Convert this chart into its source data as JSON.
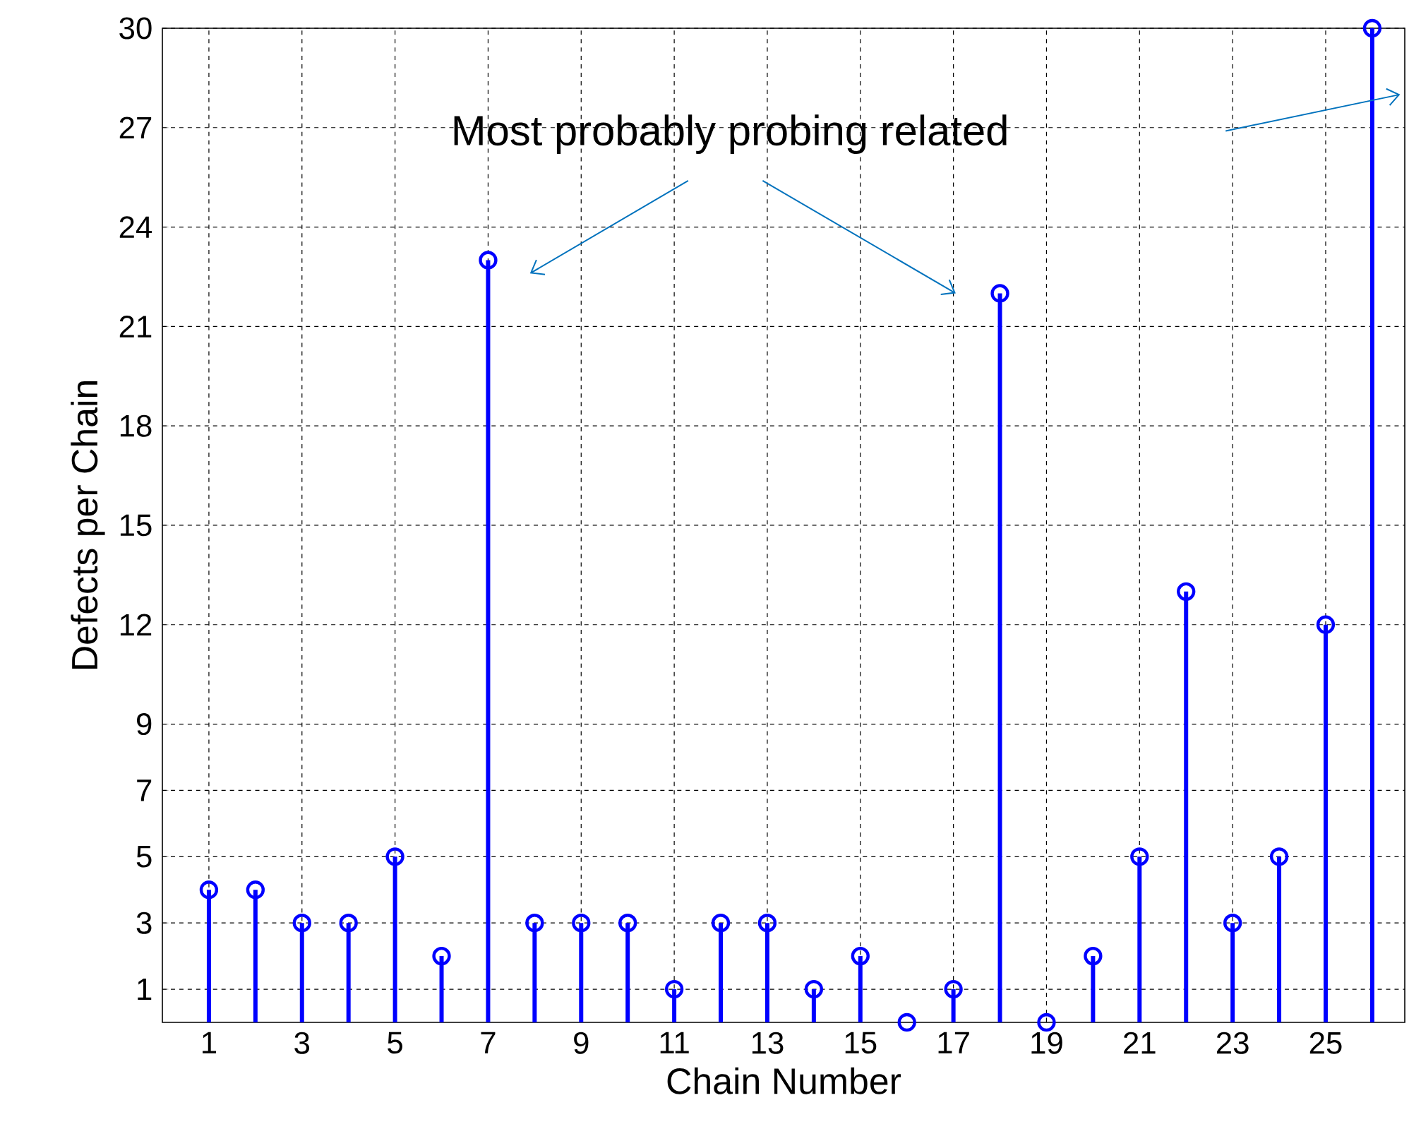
{
  "chart_data": {
    "type": "lollipop",
    "xlabel": "Chain Number",
    "ylabel": "Defects per Chain",
    "annotations": [
      "Most probably probing related"
    ],
    "x": [
      1,
      2,
      3,
      4,
      5,
      6,
      7,
      8,
      9,
      10,
      11,
      12,
      13,
      14,
      15,
      16,
      17,
      18,
      19,
      20,
      21,
      22,
      23,
      24,
      25,
      26
    ],
    "values": [
      4,
      4,
      3,
      3,
      5,
      2,
      23,
      3,
      3,
      3,
      1,
      3,
      3,
      1,
      2,
      0,
      1,
      22,
      0,
      2,
      5,
      13,
      3,
      5,
      12,
      30
    ],
    "color": "#0000ff",
    "marker": "circle",
    "grid": true,
    "xlim": [
      0,
      26.7
    ],
    "xticks": [
      1,
      3,
      5,
      7,
      9,
      11,
      13,
      15,
      17,
      19,
      21,
      23,
      25
    ],
    "ylim": [
      0,
      30
    ],
    "yticks": [
      1,
      3,
      5,
      7,
      9,
      12,
      15,
      18,
      21,
      24,
      27,
      30
    ]
  }
}
